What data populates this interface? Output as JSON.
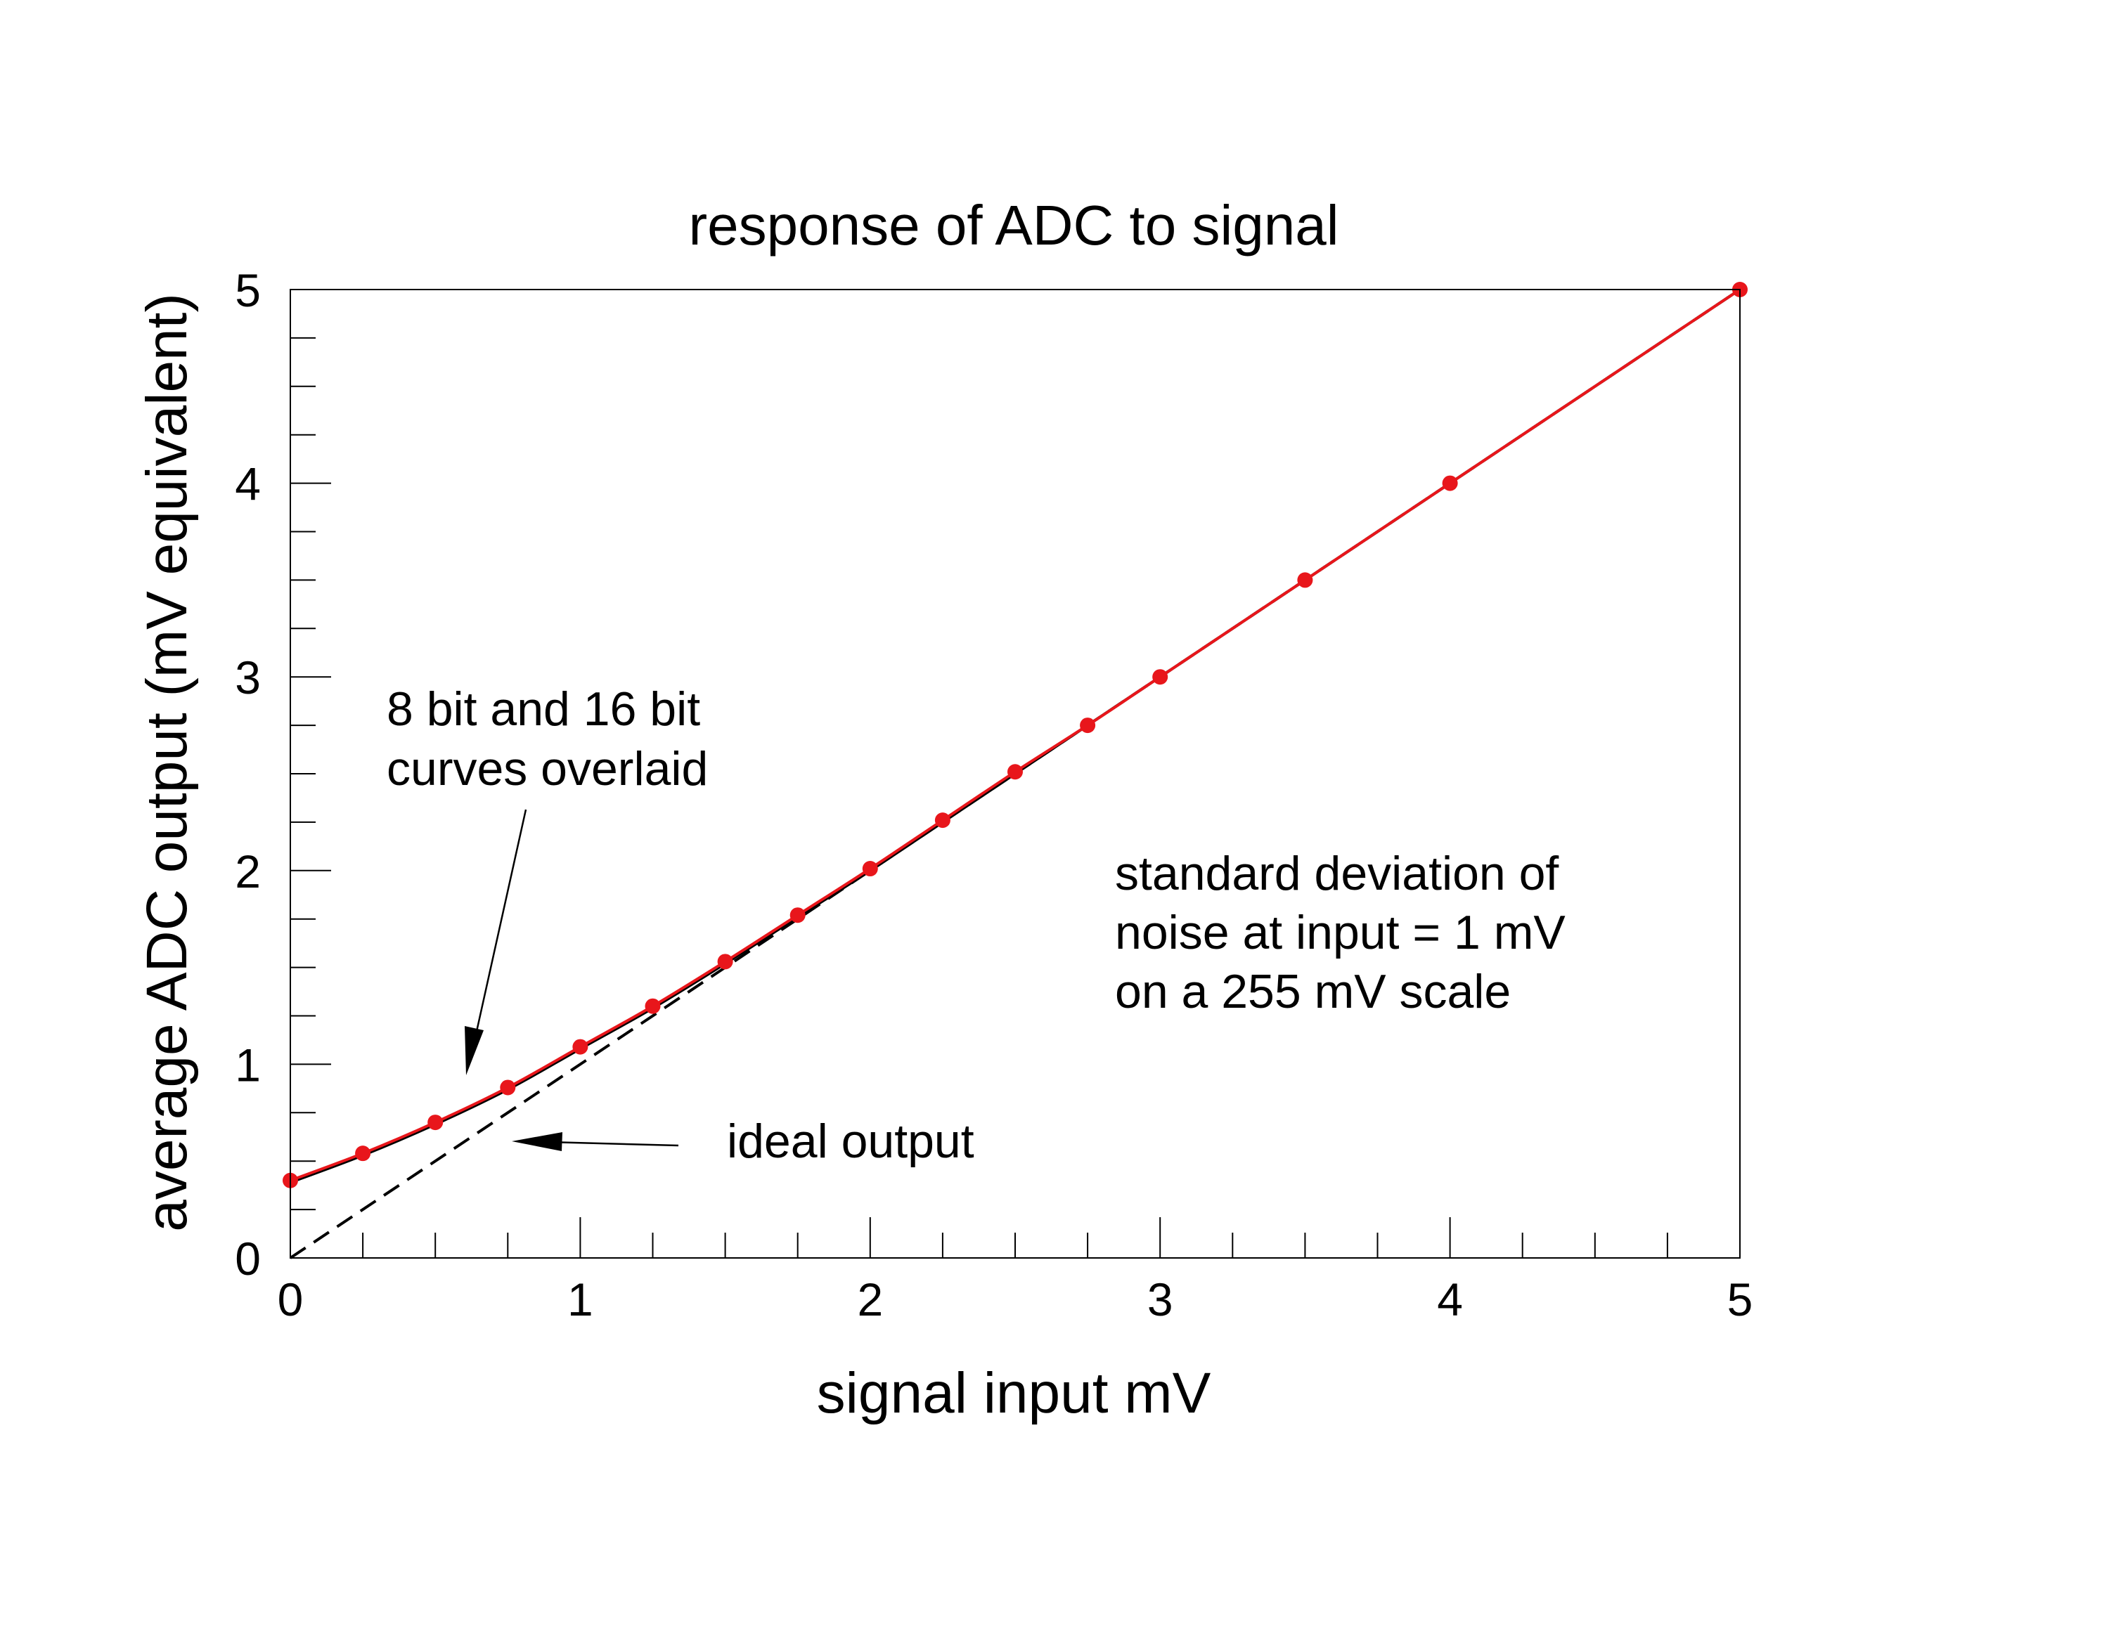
{
  "chart_data": {
    "type": "line",
    "title": "response of ADC to signal",
    "xlabel": "signal input mV",
    "ylabel": "average ADC output (mV equivalent)",
    "xlim": [
      0,
      5
    ],
    "ylim": [
      0,
      5
    ],
    "x_major_ticks": [
      0,
      1,
      2,
      3,
      4,
      5
    ],
    "x_tick_labels": [
      "0",
      "1",
      "2",
      "3",
      "4",
      "5"
    ],
    "y_major_ticks": [
      0,
      1,
      2,
      3,
      4,
      5
    ],
    "y_tick_labels": [
      "0",
      "1",
      "2",
      "3",
      "4",
      "5"
    ],
    "minor_tick_step": 0.25,
    "grid": false,
    "series": [
      {
        "name": "ideal output",
        "style": "dashed",
        "color": "#000000",
        "x": [
          0,
          5
        ],
        "y": [
          0,
          5
        ]
      },
      {
        "name": "8 bit ADC",
        "style": "solid",
        "color": "#000000",
        "x": [
          0,
          0.25,
          0.5,
          0.75,
          1.0,
          1.25,
          1.5,
          1.75,
          2.0,
          2.25,
          2.5,
          2.75,
          3.0,
          3.5,
          4.0,
          5.0
        ],
        "y": [
          0.39,
          0.53,
          0.69,
          0.87,
          1.08,
          1.29,
          1.52,
          1.76,
          2.0,
          2.25,
          2.5,
          2.75,
          3.0,
          3.5,
          4.0,
          5.0
        ]
      },
      {
        "name": "16 bit ADC",
        "style": "solid-with-markers",
        "color": "#e8161b",
        "x": [
          0,
          0.25,
          0.5,
          0.75,
          1.0,
          1.25,
          1.5,
          1.75,
          2.0,
          2.25,
          2.5,
          2.75,
          3.0,
          3.5,
          4.0,
          5.0
        ],
        "y": [
          0.4,
          0.54,
          0.7,
          0.88,
          1.09,
          1.3,
          1.53,
          1.77,
          2.01,
          2.26,
          2.51,
          2.75,
          3.0,
          3.5,
          4.0,
          5.0
        ]
      }
    ],
    "annotations": {
      "curves_note": [
        "8 bit and 16 bit",
        "curves overlaid"
      ],
      "ideal_note": "ideal output",
      "noise_note": [
        "standard deviation of",
        "noise at input = 1 mV",
        "on a 255 mV scale"
      ]
    }
  }
}
